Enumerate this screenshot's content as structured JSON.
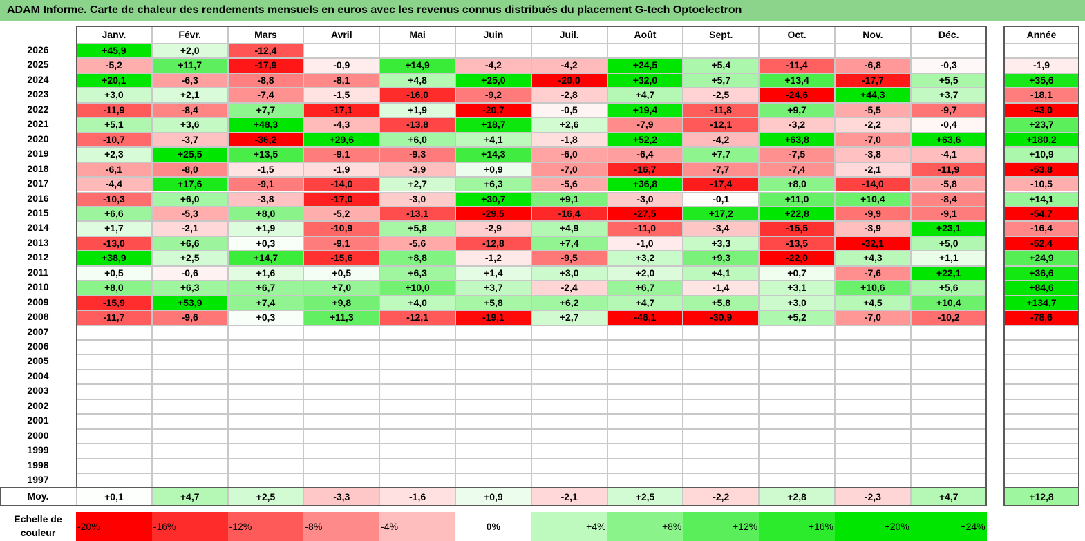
{
  "title": "ADAM Informe. Carte de chaleur des rendements mensuels en euros avec les revenus connus distribués du placement G-tech Optoelectron",
  "chart_data": {
    "type": "heatmap",
    "title": "ADAM Informe. Carte de chaleur des rendements mensuels en euros avec les revenus connus distribués du placement G-tech Optoelectron",
    "months": [
      "Janv.",
      "Févr.",
      "Mars",
      "Avril",
      "Mai",
      "Juin",
      "Juil.",
      "Août",
      "Sept.",
      "Oct.",
      "Nov.",
      "Déc."
    ],
    "year_header": "Année",
    "rows": [
      {
        "year": "2026",
        "values": [
          "+45,9",
          "+2,0",
          "-12,4",
          "",
          "",
          "",
          "",
          "",
          "",
          "",
          "",
          ""
        ],
        "annual": ""
      },
      {
        "year": "2025",
        "values": [
          "-5,2",
          "+11,7",
          "-17,9",
          "-0,9",
          "+14,9",
          "-4,2",
          "-4,2",
          "+24,5",
          "+5,4",
          "-11,4",
          "-6,8",
          "-0,3"
        ],
        "annual": "-1,9"
      },
      {
        "year": "2024",
        "values": [
          "+20,1",
          "-6,3",
          "-8,8",
          "-8,1",
          "+4,8",
          "+25,0",
          "-20,0",
          "+32,0",
          "+5,7",
          "+13,4",
          "-17,7",
          "+5,5"
        ],
        "annual": "+35,6"
      },
      {
        "year": "2023",
        "values": [
          "+3,0",
          "+2,1",
          "-7,4",
          "-1,5",
          "-16,0",
          "-9,2",
          "-2,8",
          "+4,7",
          "-2,5",
          "-24,6",
          "+44,3",
          "+3,7"
        ],
        "annual": "-18,1"
      },
      {
        "year": "2022",
        "values": [
          "-11,9",
          "-8,4",
          "+7,7",
          "-17,1",
          "+1,9",
          "-20,7",
          "-0,5",
          "+19,4",
          "-11,8",
          "+9,7",
          "-5,5",
          "-9,7"
        ],
        "annual": "-43,0"
      },
      {
        "year": "2021",
        "values": [
          "+5,1",
          "+3,6",
          "+48,3",
          "-4,3",
          "-13,8",
          "+18,7",
          "+2,6",
          "-7,9",
          "-12,1",
          "-3,2",
          "-2,2",
          "-0,4"
        ],
        "annual": "+23,7"
      },
      {
        "year": "2020",
        "values": [
          "-10,7",
          "-3,7",
          "-36,2",
          "+29,6",
          "+6,0",
          "+4,1",
          "-1,8",
          "+52,2",
          "-4,2",
          "+63,8",
          "-7,0",
          "+63,6"
        ],
        "annual": "+180,2"
      },
      {
        "year": "2019",
        "values": [
          "+2,3",
          "+25,5",
          "+13,5",
          "-9,1",
          "-9,3",
          "+14,3",
          "-6,0",
          "-6,4",
          "+7,7",
          "-7,5",
          "-3,8",
          "-4,1"
        ],
        "annual": "+10,9"
      },
      {
        "year": "2018",
        "values": [
          "-6,1",
          "-8,0",
          "-1,5",
          "-1,9",
          "-3,9",
          "+0,9",
          "-7,0",
          "-16,7",
          "-7,7",
          "-7,4",
          "-2,1",
          "-11,9"
        ],
        "annual": "-53,8"
      },
      {
        "year": "2017",
        "values": [
          "-4,4",
          "+17,6",
          "-9,1",
          "-14,0",
          "+2,7",
          "+6,3",
          "-5,6",
          "+36,8",
          "-17,4",
          "+8,0",
          "-14,0",
          "-5,8"
        ],
        "annual": "-10,5"
      },
      {
        "year": "2016",
        "values": [
          "-10,3",
          "+6,0",
          "-3,8",
          "-17,0",
          "-3,0",
          "+30,7",
          "+9,1",
          "-3,0",
          "-0,1",
          "+11,0",
          "+10,4",
          "-8,4"
        ],
        "annual": "+14,1"
      },
      {
        "year": "2015",
        "values": [
          "+6,6",
          "-5,3",
          "+8,0",
          "-5,2",
          "-13,1",
          "-29,5",
          "-16,4",
          "-27,5",
          "+17,2",
          "+22,8",
          "-9,9",
          "-9,1"
        ],
        "annual": "-54,7"
      },
      {
        "year": "2014",
        "values": [
          "+1,7",
          "-2,1",
          "+1,9",
          "-10,9",
          "+5,8",
          "-2,9",
          "+4,9",
          "-11,0",
          "-3,4",
          "-15,5",
          "-3,9",
          "+23,1"
        ],
        "annual": "-16,4"
      },
      {
        "year": "2013",
        "values": [
          "-13,0",
          "+6,6",
          "+0,3",
          "-9,1",
          "-5,6",
          "-12,8",
          "+7,4",
          "-1,0",
          "+3,3",
          "-13,5",
          "-32,1",
          "+5,0"
        ],
        "annual": "-52,4"
      },
      {
        "year": "2012",
        "values": [
          "+38,9",
          "+2,5",
          "+14,7",
          "-15,6",
          "+8,8",
          "-1,2",
          "-9,5",
          "+3,2",
          "+9,3",
          "-22,0",
          "+4,3",
          "+1,1"
        ],
        "annual": "+24,9"
      },
      {
        "year": "2011",
        "values": [
          "+0,5",
          "-0,6",
          "+1,6",
          "+0,5",
          "+6,3",
          "+1,4",
          "+3,0",
          "+2,0",
          "+4,1",
          "+0,7",
          "-7,6",
          "+22,1"
        ],
        "annual": "+36,6"
      },
      {
        "year": "2010",
        "values": [
          "+8,0",
          "+6,3",
          "+6,7",
          "+7,0",
          "+10,0",
          "+3,7",
          "-2,4",
          "+6,7",
          "-1,4",
          "+3,1",
          "+10,6",
          "+5,6"
        ],
        "annual": "+84,6"
      },
      {
        "year": "2009",
        "values": [
          "-15,9",
          "+53,9",
          "+7,4",
          "+9,8",
          "+4,0",
          "+5,8",
          "+6,2",
          "+4,7",
          "+5,8",
          "+3,0",
          "+4,5",
          "+10,4"
        ],
        "annual": "+134,7"
      },
      {
        "year": "2008",
        "values": [
          "-11,7",
          "-9,6",
          "+0,3",
          "+11,3",
          "-12,1",
          "-19,1",
          "+2,7",
          "-46,1",
          "-30,9",
          "+5,2",
          "-7,0",
          "-10,2"
        ],
        "annual": "-78,6"
      },
      {
        "year": "2007",
        "values": [
          "",
          "",
          "",
          "",
          "",
          "",
          "",
          "",
          "",
          "",
          "",
          ""
        ],
        "annual": ""
      },
      {
        "year": "2006",
        "values": [
          "",
          "",
          "",
          "",
          "",
          "",
          "",
          "",
          "",
          "",
          "",
          ""
        ],
        "annual": ""
      },
      {
        "year": "2005",
        "values": [
          "",
          "",
          "",
          "",
          "",
          "",
          "",
          "",
          "",
          "",
          "",
          ""
        ],
        "annual": ""
      },
      {
        "year": "2004",
        "values": [
          "",
          "",
          "",
          "",
          "",
          "",
          "",
          "",
          "",
          "",
          "",
          ""
        ],
        "annual": ""
      },
      {
        "year": "2003",
        "values": [
          "",
          "",
          "",
          "",
          "",
          "",
          "",
          "",
          "",
          "",
          "",
          ""
        ],
        "annual": ""
      },
      {
        "year": "2002",
        "values": [
          "",
          "",
          "",
          "",
          "",
          "",
          "",
          "",
          "",
          "",
          "",
          ""
        ],
        "annual": ""
      },
      {
        "year": "2001",
        "values": [
          "",
          "",
          "",
          "",
          "",
          "",
          "",
          "",
          "",
          "",
          "",
          ""
        ],
        "annual": ""
      },
      {
        "year": "2000",
        "values": [
          "",
          "",
          "",
          "",
          "",
          "",
          "",
          "",
          "",
          "",
          "",
          ""
        ],
        "annual": ""
      },
      {
        "year": "1999",
        "values": [
          "",
          "",
          "",
          "",
          "",
          "",
          "",
          "",
          "",
          "",
          "",
          ""
        ],
        "annual": ""
      },
      {
        "year": "1998",
        "values": [
          "",
          "",
          "",
          "",
          "",
          "",
          "",
          "",
          "",
          "",
          "",
          ""
        ],
        "annual": ""
      },
      {
        "year": "1997",
        "values": [
          "",
          "",
          "",
          "",
          "",
          "",
          "",
          "",
          "",
          "",
          "",
          ""
        ],
        "annual": ""
      }
    ],
    "average": {
      "label": "Moy.",
      "values": [
        "+0,1",
        "+4,7",
        "+2,5",
        "-3,3",
        "-1,6",
        "+0,9",
        "-2,1",
        "+2,5",
        "-2,2",
        "+2,8",
        "-2,3",
        "+4,7"
      ],
      "annual": "+12,8"
    },
    "color_scale": {
      "label": "Echelle de couleur",
      "stops": [
        "-20%",
        "-16%",
        "-12%",
        "-8%",
        "-4%",
        "0%",
        "+4%",
        "+8%",
        "+12%",
        "+16%",
        "+20%",
        "+24%"
      ]
    },
    "colors": {
      "negative": "#ff0000",
      "positive": "#00e600",
      "neutral": "#ffffff",
      "title_bar": "#8cd38c"
    }
  }
}
